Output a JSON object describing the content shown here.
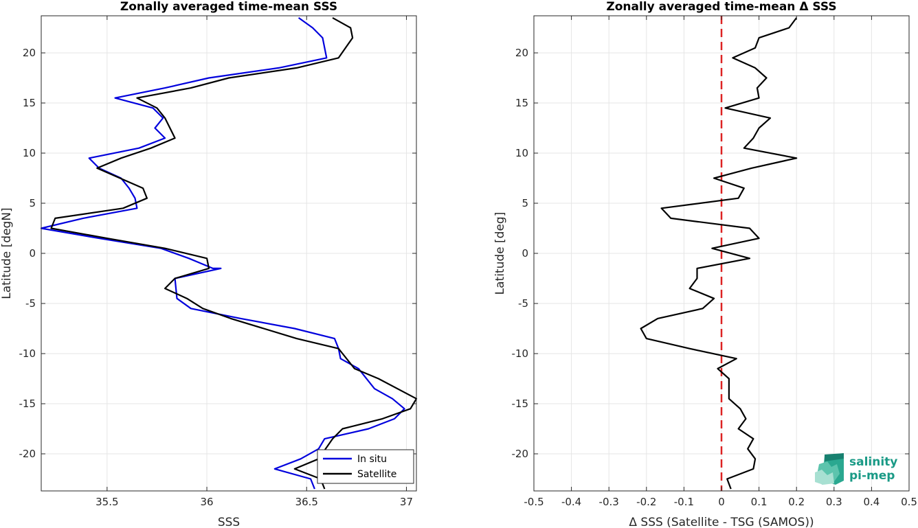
{
  "logo": {
    "line1": "salinity",
    "line2": "pi-mep",
    "color": "#1a9a86"
  },
  "chart_data": [
    {
      "type": "line",
      "title": "Zonally averaged time-mean SSS",
      "xlabel": "SSS",
      "ylabel": "Latitude [degN]",
      "xlim": [
        35.17,
        37.05
      ],
      "ylim": [
        -23.7,
        23.7
      ],
      "xticks": [
        35.5,
        36,
        36.5,
        37
      ],
      "xtick_labels": [
        "35.5",
        "36",
        "36.5",
        "37"
      ],
      "yticks": [
        -20,
        -15,
        -10,
        -5,
        0,
        5,
        10,
        15,
        20
      ],
      "ytick_labels": [
        "-20",
        "-15",
        "-10",
        "-5",
        "0",
        "5",
        "10",
        "15",
        "20"
      ],
      "grid": true,
      "legend": "bottom-right",
      "series": [
        {
          "name": "In situ",
          "color": "#0000dd",
          "points": [
            [
              36.46,
              23.5
            ],
            [
              36.53,
              22.5
            ],
            [
              36.58,
              21.5
            ],
            [
              36.6,
              19.5
            ],
            [
              36.36,
              18.5
            ],
            [
              36.01,
              17.5
            ],
            [
              35.79,
              16.5
            ],
            [
              35.54,
              15.5
            ],
            [
              35.73,
              14.5
            ],
            [
              35.78,
              13.5
            ],
            [
              35.74,
              12.5
            ],
            [
              35.79,
              11.5
            ],
            [
              35.66,
              10.5
            ],
            [
              35.41,
              9.5
            ],
            [
              35.46,
              8.5
            ],
            [
              35.57,
              7.5
            ],
            [
              35.61,
              6.5
            ],
            [
              35.64,
              5.5
            ],
            [
              35.65,
              4.5
            ],
            [
              35.38,
              3.5
            ],
            [
              35.17,
              2.5
            ],
            [
              35.46,
              1.5
            ],
            [
              35.77,
              0.5
            ],
            [
              35.91,
              -0.5
            ],
            [
              36.03,
              -1.5
            ],
            [
              36.07,
              -1.5
            ],
            [
              35.84,
              -2.5
            ],
            [
              35.85,
              -4.5
            ],
            [
              35.92,
              -5.5
            ],
            [
              36.17,
              -6.5
            ],
            [
              36.44,
              -7.5
            ],
            [
              36.64,
              -8.5
            ],
            [
              36.66,
              -9.5
            ],
            [
              36.67,
              -10.5
            ],
            [
              36.76,
              -11.5
            ],
            [
              36.84,
              -13.5
            ],
            [
              36.93,
              -14.5
            ],
            [
              36.99,
              -15.5
            ],
            [
              36.94,
              -16.5
            ],
            [
              36.81,
              -17.5
            ],
            [
              36.59,
              -18.5
            ],
            [
              36.56,
              -19.5
            ],
            [
              36.47,
              -20.5
            ],
            [
              36.34,
              -21.5
            ],
            [
              36.52,
              -22.5
            ],
            [
              36.54,
              -23.5
            ]
          ]
        },
        {
          "name": "Satellite",
          "color": "#000000",
          "points": [
            [
              36.63,
              23.5
            ],
            [
              36.72,
              22.5
            ],
            [
              36.73,
              21.5
            ],
            [
              36.66,
              19.5
            ],
            [
              36.45,
              18.5
            ],
            [
              36.11,
              17.5
            ],
            [
              35.92,
              16.5
            ],
            [
              35.65,
              15.5
            ],
            [
              35.75,
              14.5
            ],
            [
              35.79,
              13.5
            ],
            [
              35.84,
              11.5
            ],
            [
              35.72,
              10.5
            ],
            [
              35.57,
              9.5
            ],
            [
              35.45,
              8.5
            ],
            [
              35.68,
              6.5
            ],
            [
              35.7,
              5.5
            ],
            [
              35.58,
              4.5
            ],
            [
              35.24,
              3.5
            ],
            [
              35.22,
              2.5
            ],
            [
              35.5,
              1.5
            ],
            [
              35.79,
              0.5
            ],
            [
              36.0,
              -0.5
            ],
            [
              36.01,
              -1.5
            ],
            [
              35.84,
              -2.5
            ],
            [
              35.79,
              -3.5
            ],
            [
              35.9,
              -4.5
            ],
            [
              35.98,
              -5.5
            ],
            [
              36.12,
              -6.5
            ],
            [
              36.45,
              -8.5
            ],
            [
              36.66,
              -9.5
            ],
            [
              36.74,
              -11.5
            ],
            [
              36.86,
              -12.5
            ],
            [
              37.05,
              -14.5
            ],
            [
              37.02,
              -15.5
            ],
            [
              36.88,
              -16.5
            ],
            [
              36.68,
              -17.5
            ],
            [
              36.63,
              -18.5
            ],
            [
              36.56,
              -20.5
            ],
            [
              36.44,
              -21.5
            ],
            [
              36.57,
              -22.5
            ],
            [
              36.59,
              -23.5
            ]
          ]
        }
      ]
    },
    {
      "type": "line",
      "title": "Zonally averaged time-mean Δ SSS",
      "xlabel": "Δ SSS (Satellite - TSG (SAMOS))",
      "ylabel": "Latitude [deg]",
      "xlim": [
        -0.5,
        0.5
      ],
      "ylim": [
        -23.7,
        23.7
      ],
      "xticks": [
        -0.5,
        -0.4,
        -0.3,
        -0.2,
        -0.1,
        0,
        0.1,
        0.2,
        0.3,
        0.4,
        0.5
      ],
      "xtick_labels": [
        "-0.5",
        "-0.4",
        "-0.3",
        "-0.2",
        "-0.1",
        "0",
        "0.1",
        "0.2",
        "0.3",
        "0.4",
        "0.5"
      ],
      "yticks": [
        -20,
        -15,
        -10,
        -5,
        0,
        5,
        10,
        15,
        20
      ],
      "ytick_labels": [
        "-20",
        "-15",
        "-10",
        "-5",
        "0",
        "5",
        "10",
        "15",
        "20"
      ],
      "grid": true,
      "reference_line": {
        "x": 0,
        "color": "#dd2222",
        "style": "dashed"
      },
      "series": [
        {
          "color": "#000000",
          "points": [
            [
              0.2,
              23.5
            ],
            [
              0.18,
              22.5
            ],
            [
              0.1,
              21.5
            ],
            [
              0.09,
              20.5
            ],
            [
              0.03,
              19.5
            ],
            [
              0.09,
              18.5
            ],
            [
              0.12,
              17.5
            ],
            [
              0.095,
              16.5
            ],
            [
              0.1,
              15.5
            ],
            [
              0.01,
              14.5
            ],
            [
              0.13,
              13.5
            ],
            [
              0.1,
              12.5
            ],
            [
              0.085,
              11.5
            ],
            [
              0.06,
              10.5
            ],
            [
              0.2,
              9.5
            ],
            [
              0.08,
              8.5
            ],
            [
              -0.02,
              7.5
            ],
            [
              0.06,
              6.5
            ],
            [
              0.045,
              5.5
            ],
            [
              -0.16,
              4.5
            ],
            [
              -0.135,
              3.5
            ],
            [
              0.075,
              2.5
            ],
            [
              0.1,
              1.5
            ],
            [
              -0.025,
              0.5
            ],
            [
              0.075,
              -0.5
            ],
            [
              -0.065,
              -1.5
            ],
            [
              -0.065,
              -2.5
            ],
            [
              -0.085,
              -3.5
            ],
            [
              -0.02,
              -4.5
            ],
            [
              -0.05,
              -5.5
            ],
            [
              -0.17,
              -6.5
            ],
            [
              -0.215,
              -7.5
            ],
            [
              -0.2,
              -8.5
            ],
            [
              -0.085,
              -9.5
            ],
            [
              0.04,
              -10.5
            ],
            [
              -0.01,
              -11.5
            ],
            [
              0.02,
              -12.5
            ],
            [
              0.02,
              -14.5
            ],
            [
              0.05,
              -15.5
            ],
            [
              0.065,
              -16.5
            ],
            [
              0.045,
              -17.5
            ],
            [
              0.085,
              -18.5
            ],
            [
              0.07,
              -19.5
            ],
            [
              0.09,
              -20.5
            ],
            [
              0.085,
              -21.5
            ],
            [
              0.015,
              -22.5
            ],
            [
              0.025,
              -23.5
            ]
          ]
        }
      ]
    }
  ]
}
